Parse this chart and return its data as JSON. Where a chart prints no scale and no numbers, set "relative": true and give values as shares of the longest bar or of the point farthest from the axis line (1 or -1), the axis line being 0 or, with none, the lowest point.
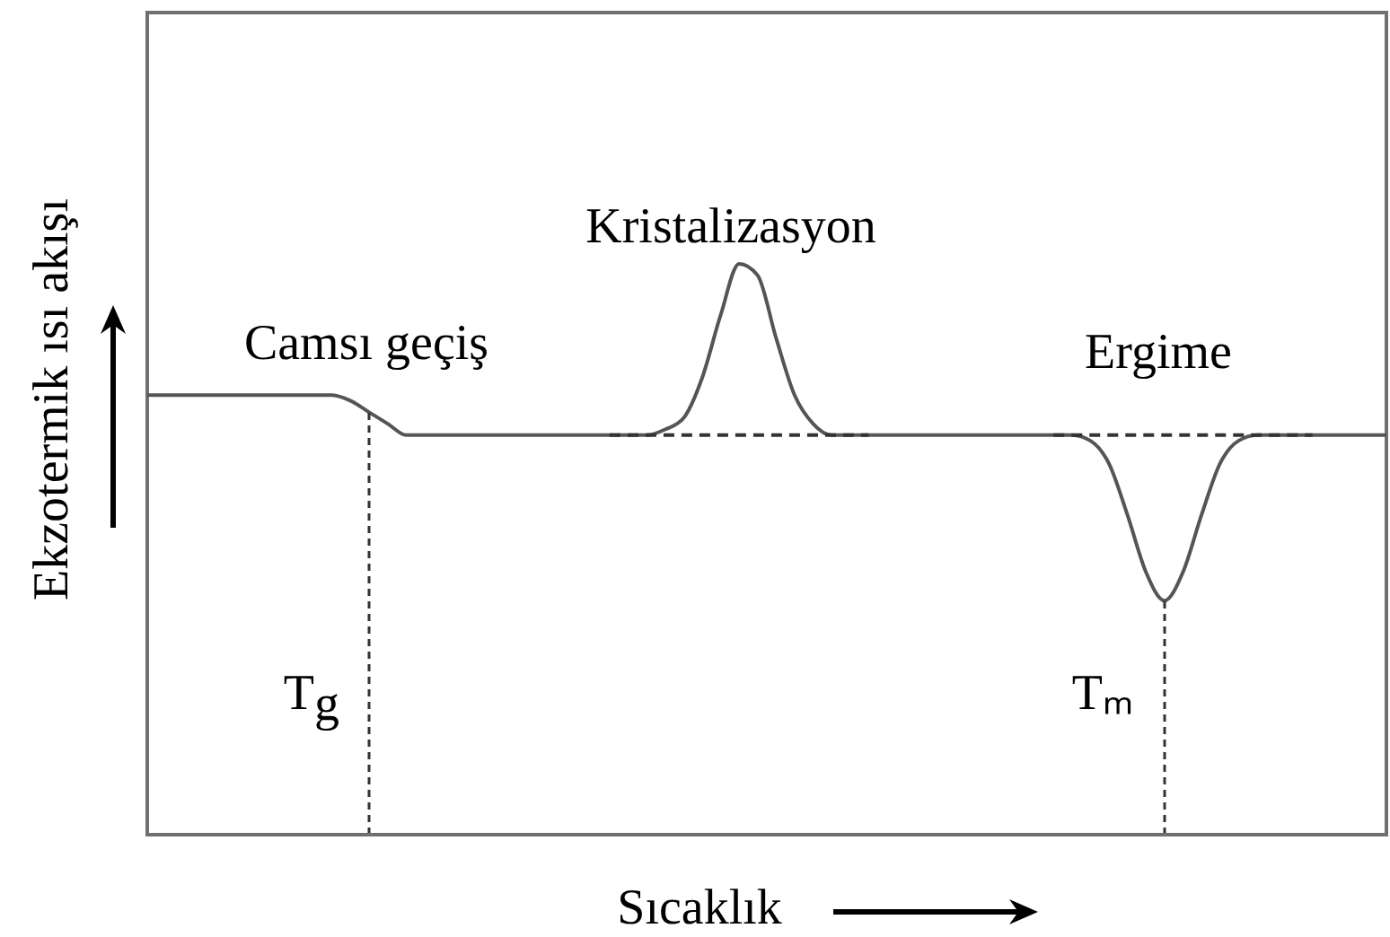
{
  "chart_data": {
    "type": "line",
    "relative": true,
    "xlabel": "Sıcaklık",
    "ylabel": "Ekzotermik ısı akışı",
    "categories": [
      null,
      null,
      null,
      null,
      null,
      null,
      null,
      null,
      null,
      null,
      null,
      null,
      null,
      null,
      null,
      null,
      null,
      null,
      null,
      null,
      null,
      null,
      null,
      null,
      null,
      null,
      null,
      null,
      null,
      null,
      null,
      null,
      null,
      null,
      null,
      null,
      null,
      null,
      null,
      null,
      null,
      null,
      null,
      null,
      null,
      null,
      null,
      null,
      null,
      null,
      null,
      null,
      null,
      null,
      null,
      null,
      null,
      null,
      null,
      null,
      null,
      null,
      null,
      null,
      null,
      null,
      null,
      null
    ],
    "series": [
      {
        "color": "#555555",
        "values": [
          0.77,
          0.77,
          0.77,
          0.77,
          0.77,
          0.77,
          0.77,
          0.77,
          0.77,
          0.77,
          0.77,
          0.76,
          0.74,
          0.72,
          0.7,
          0.7,
          0.7,
          0.7,
          0.7,
          0.7,
          0.7,
          0.7,
          0.7,
          0.7,
          0.7,
          0.7,
          0.7,
          0.7,
          0.71,
          0.73,
          0.8,
          0.91,
          1,
          0.98,
          0.87,
          0.77,
          0.72,
          0.7,
          0.7,
          0.7,
          0.7,
          0.7,
          0.7,
          0.7,
          0.7,
          0.7,
          0.7,
          0.7,
          0.7,
          0.7,
          0.7,
          0.69,
          0.65,
          0.56,
          0.46,
          0.41,
          0.46,
          0.56,
          0.65,
          0.69,
          0.7,
          0.7,
          0.7,
          0.7,
          0.7,
          0.7,
          0.7,
          0.7
        ]
      },
      {
        "color": "#333333",
        "line_style": "dashed",
        "values": [
          null,
          null,
          null,
          null,
          null,
          null,
          null,
          null,
          null,
          null,
          null,
          null,
          null,
          null,
          null,
          null,
          null,
          null,
          null,
          null,
          null,
          null,
          null,
          null,
          null,
          0.7,
          0.7,
          0.7,
          0.7,
          0.7,
          0.7,
          0.7,
          0.7,
          0.7,
          0.7,
          0.7,
          0.7,
          0.7,
          0.7,
          0.7,
          null,
          null,
          null,
          null,
          null,
          null,
          null,
          null,
          null,
          null,
          null,
          null,
          null,
          null,
          null,
          null,
          null,
          null,
          null,
          null,
          null,
          null,
          null,
          null,
          null,
          null,
          null,
          null
        ]
      },
      {
        "color": "#333333",
        "line_style": "dashed",
        "values": [
          null,
          null,
          null,
          null,
          null,
          null,
          null,
          null,
          null,
          null,
          null,
          null,
          null,
          null,
          null,
          null,
          null,
          null,
          null,
          null,
          null,
          null,
          null,
          null,
          null,
          null,
          null,
          null,
          null,
          null,
          null,
          null,
          null,
          null,
          null,
          null,
          null,
          null,
          null,
          null,
          null,
          null,
          null,
          null,
          null,
          null,
          null,
          null,
          null,
          0.7,
          0.7,
          0.7,
          0.7,
          0.7,
          0.7,
          0.7,
          0.7,
          0.7,
          0.7,
          0.7,
          0.7,
          0.7,
          0.7,
          0.7,
          null,
          null,
          null,
          null
        ]
      }
    ],
    "annotations": [
      "Camsı geçiş",
      "Kristalizasyon",
      "Ergime",
      "T$_{g}$",
      "Tₘ"
    ]
  }
}
